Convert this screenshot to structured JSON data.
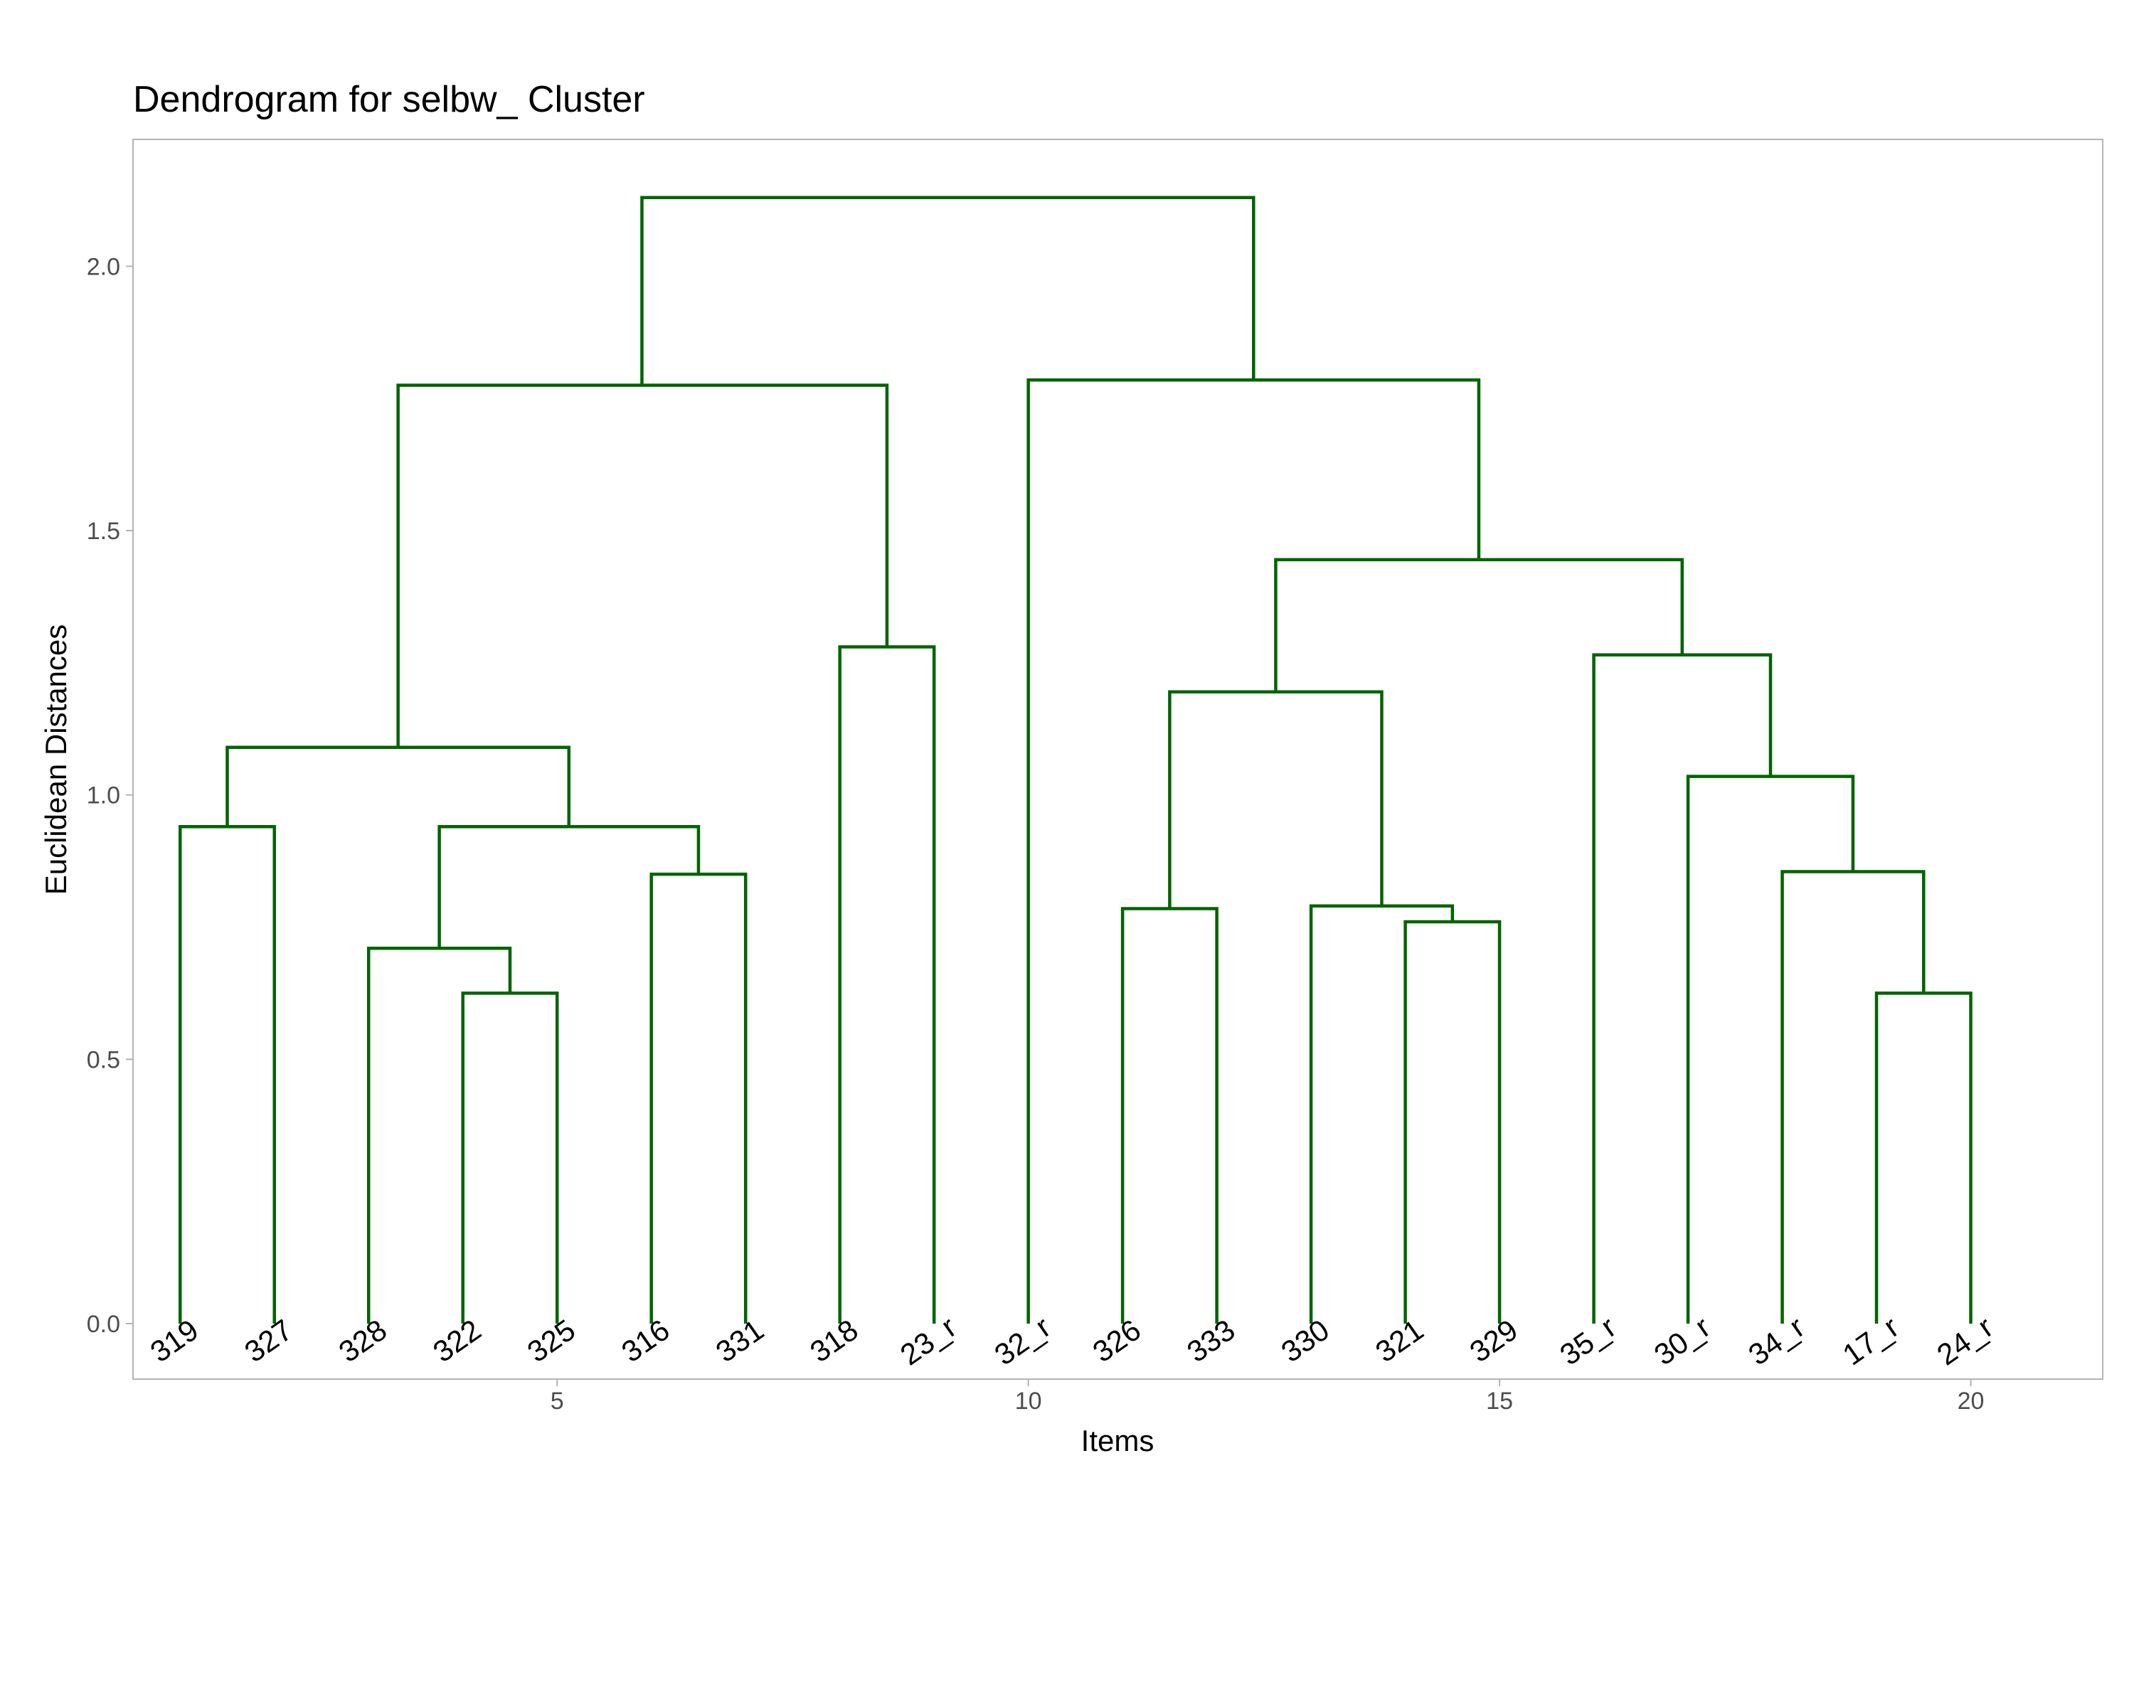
{
  "chart_data": {
    "type": "dendrogram",
    "title": "Dendrogram for selbw_ Cluster",
    "xlabel": "Items",
    "ylabel": "Euclidean Distances",
    "xlim": [
      0.5,
      21.4
    ],
    "ylim": [
      -0.105,
      2.24
    ],
    "x_ticks": [
      {
        "value": 5,
        "label": "5"
      },
      {
        "value": 10,
        "label": "10"
      },
      {
        "value": 15,
        "label": "15"
      },
      {
        "value": 20,
        "label": "20"
      }
    ],
    "y_ticks": [
      {
        "value": 0,
        "label": "0.0"
      },
      {
        "value": 0.5,
        "label": "0.5"
      },
      {
        "value": 1,
        "label": "1.0"
      },
      {
        "value": 1.5,
        "label": "1.5"
      },
      {
        "value": 2,
        "label": "2.0"
      }
    ],
    "leaves": [
      "319",
      "327",
      "328",
      "322",
      "325",
      "316",
      "331",
      "318",
      "23_r",
      "32_r",
      "326",
      "333",
      "330",
      "321",
      "329",
      "35_r",
      "30_r",
      "34_r",
      "17_r",
      "24_r"
    ],
    "merges": [
      {
        "x": [
          4,
          5
        ],
        "y": [
          0,
          0
        ],
        "height": 0.625
      },
      {
        "x": [
          19,
          20
        ],
        "y": [
          0,
          0
        ],
        "height": 0.625
      },
      {
        "x": [
          3,
          4.5
        ],
        "y": [
          0,
          0.625
        ],
        "height": 0.71
      },
      {
        "x": [
          14,
          15
        ],
        "y": [
          0,
          0
        ],
        "height": 0.76
      },
      {
        "x": [
          11,
          12
        ],
        "y": [
          0,
          0
        ],
        "height": 0.785
      },
      {
        "x": [
          13,
          14.5
        ],
        "y": [
          0,
          0.76
        ],
        "height": 0.79
      },
      {
        "x": [
          6,
          7
        ],
        "y": [
          0,
          0
        ],
        "height": 0.85
      },
      {
        "x": [
          18,
          19.5
        ],
        "y": [
          0,
          0.625
        ],
        "height": 0.855
      },
      {
        "x": [
          1,
          2
        ],
        "y": [
          0,
          0
        ],
        "height": 0.94
      },
      {
        "x": [
          3.75,
          6.5
        ],
        "y": [
          0.71,
          0.85
        ],
        "height": 0.94
      },
      {
        "x": [
          17,
          18.75
        ],
        "y": [
          0,
          0.855
        ],
        "height": 1.035
      },
      {
        "x": [
          1.5,
          5.125
        ],
        "y": [
          0.94,
          0.94
        ],
        "height": 1.09
      },
      {
        "x": [
          11.5,
          13.75
        ],
        "y": [
          0.785,
          0.79
        ],
        "height": 1.195
      },
      {
        "x": [
          16,
          17.875
        ],
        "y": [
          0,
          1.035
        ],
        "height": 1.265
      },
      {
        "x": [
          8,
          9
        ],
        "y": [
          0,
          0
        ],
        "height": 1.28
      },
      {
        "x": [
          12.625,
          16.9375
        ],
        "y": [
          1.195,
          1.265
        ],
        "height": 1.445
      },
      {
        "x": [
          3.3125,
          8.5
        ],
        "y": [
          1.09,
          1.28
        ],
        "height": 1.775
      },
      {
        "x": [
          10,
          14.78
        ],
        "y": [
          0,
          1.445
        ],
        "height": 1.785
      },
      {
        "x": [
          5.9,
          12.39
        ],
        "y": [
          1.775,
          1.785
        ],
        "height": 2.13
      }
    ],
    "grid": false,
    "legend": "none",
    "colors": {
      "links": "#006400",
      "panel_border": "#b3b3b3",
      "tick_text": "#4d4d4d",
      "text": "#000000"
    }
  }
}
